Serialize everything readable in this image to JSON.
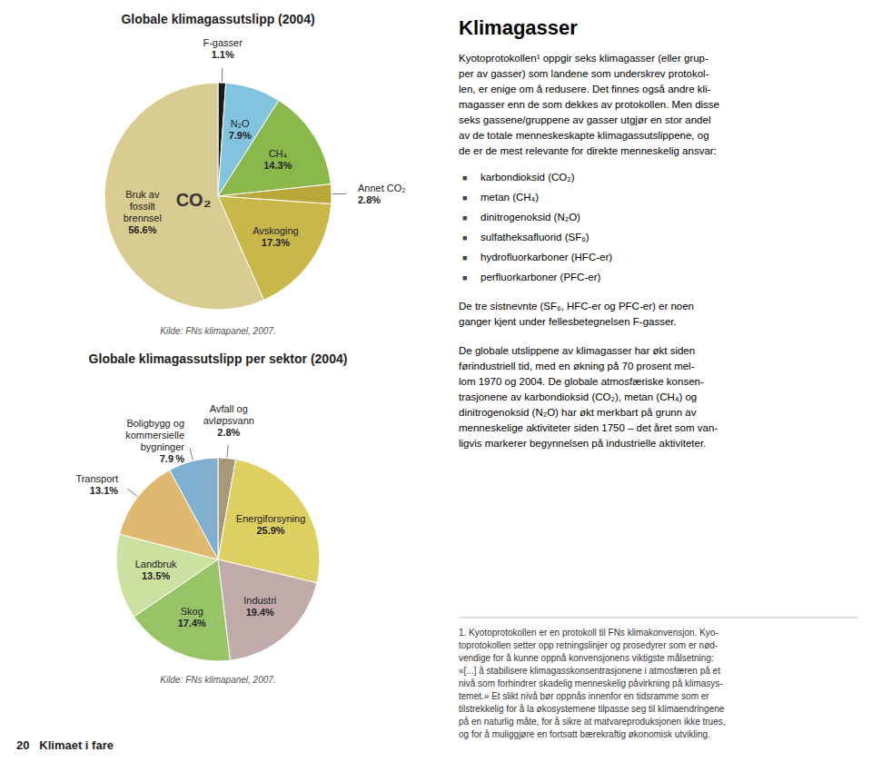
{
  "chart_data": [
    {
      "type": "pie",
      "title": "Globale klimagassutslipp (2004)",
      "categories": [
        "F-gasser",
        "N₂O",
        "CH₄",
        "Annet CO₂",
        "Avskoging",
        "Bruk av\nfossilt\nbrennsel"
      ],
      "values": [
        1.1,
        7.9,
        14.3,
        2.8,
        17.3,
        56.6
      ],
      "value_labels": [
        "1.1%",
        "7.9%",
        "14.3%",
        "2.8%",
        "17.3%",
        "56.6%"
      ],
      "colors": [
        "#1a1a1a",
        "#82c4e0",
        "#8ab84a",
        "#b8a83a",
        "#c8b84a",
        "#d8cc90"
      ],
      "data_labels": true,
      "annotations": [
        {
          "text": "CO₂",
          "category": "Bruk av\nfossilt\nbrennsel"
        }
      ],
      "source": "Kilde: FNs klimapanel, 2007."
    },
    {
      "type": "pie",
      "title": "Globale klimagassutslipp per sektor (2004)",
      "categories": [
        "Avfall og\navløpsvann",
        "Energiforsyning",
        "Industri",
        "Skog",
        "Landbruk",
        "Transport",
        "Boligbygg og\nkommersielle\nbygninger"
      ],
      "values": [
        2.8,
        25.9,
        19.4,
        17.4,
        13.5,
        13.1,
        7.9
      ],
      "value_labels": [
        "2.8%",
        "25.9%",
        "19.4%",
        "17.4%",
        "13.5%",
        "13.1%",
        "7.9 %"
      ],
      "colors": [
        "#a89878",
        "#ddd060",
        "#c0aaaa",
        "#98c468",
        "#cce0a0",
        "#e0b870",
        "#80b0d0"
      ],
      "data_labels": true,
      "source": "Kilde: FNs klimapanel, 2007."
    }
  ],
  "text_panel": {
    "title": "Klimagasser",
    "intro": "Kyotoprotokollen¹ oppgir seks klimagasser (eller grup-\nper av gasser) som landene som underskrev protokol-\nlen, er enige om å redusere. Det finnes også andre kli-\nmagasser enn de som dekkes av protokollen. Men disse\nseks gassene/gruppene av gasser utgjør en stor andel\nav de totale menneskeskapte klimagassutslippene, og\nde er de mest relevante for direkte menneskelig ansvar:",
    "bullet_symbol": "■",
    "bullets": [
      "karbondioksid (CO₂)",
      "metan (CH₄)",
      "dinitrogenoksid (N₂O)",
      "sulfatheksafluorid (SF₆)",
      "hydrofluorkarboner (HFC-er)",
      "perfluorkarboner (PFC-er)"
    ],
    "paragraphs": [
      "De tre sistnevnte (SF₆, HFC-er og PFC-er) er noen\nganger kjent under fellesbetegnelsen F-gasser.",
      "De globale utslippene av klimagasser har økt siden\nførindustriell tid, med en økning på 70 prosent mel-\nlom 1970 og 2004. De globale atmosfæriske konsen-\ntrasjonene av karbondioksid (CO₂), metan (CH₄) og\ndinitrogenoksid (N₂O) har økt merkbart på grunn av\nmenneskelige aktiviteter siden 1750 – det året som van-\nligvis markerer begynnelsen på industrielle aktiviteter."
    ],
    "footnote": "1. Kyotoprotokollen er en protokoll til FNs klimakonvensjon. Kyo-\ntoprotokollen setter opp retningslinjer og prosedyrer som er nød-\nvendige for å kunne oppnå konvensjonens viktigste målsetning:\n«[...] å stabilisere klimagasskonsentrasjonene i atmosfæren på et\nnivå som forhindrer skadelig menneskelig påvirkning på klimasys-\ntemet.» Et slikt nivå bør oppnås innenfor en tidsramme som er\ntilstrekkelig for å la økosystemene tilpasse seg til klimaendringene\npå en naturlig måte, for å sikre at matvareproduksjonen ikke trues,\nog for å muliggjøre en fortsatt bærekraftig økonomisk utvikling.",
    "footer": "20   Klimaet i fare"
  }
}
